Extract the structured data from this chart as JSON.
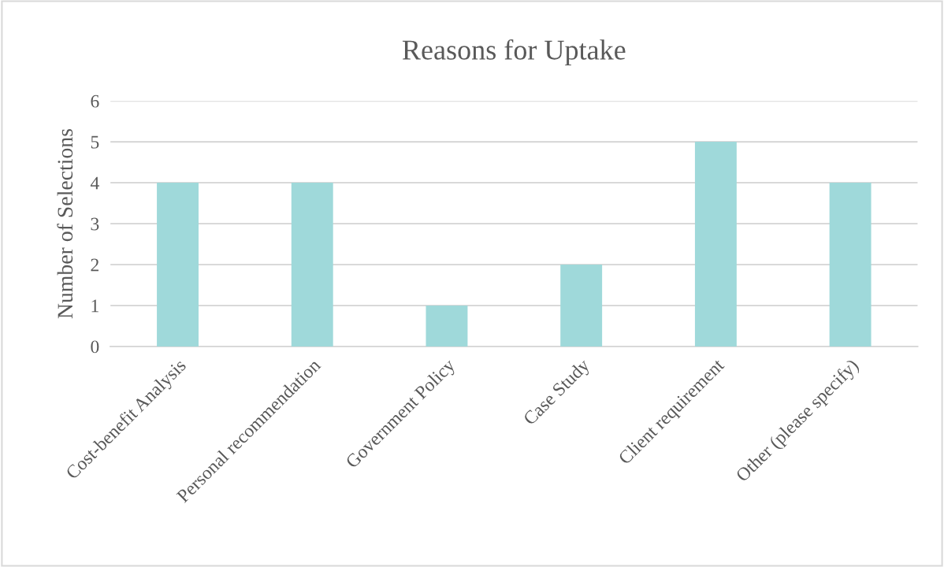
{
  "chart_data": {
    "type": "bar",
    "title": "Reasons for Uptake",
    "ylabel": "Number of Selections",
    "categories": [
      "Cost-benefit Analysis",
      "Personal recommendation",
      "Government Policy",
      "Case Study",
      "Client requirement",
      "Other (please specify)"
    ],
    "values": [
      4,
      4,
      1,
      2,
      5,
      4
    ],
    "color": "#9fd9da",
    "ylim": [
      0,
      6
    ],
    "yticks": [
      0,
      1,
      2,
      3,
      4,
      5,
      6
    ],
    "grid": "y"
  }
}
